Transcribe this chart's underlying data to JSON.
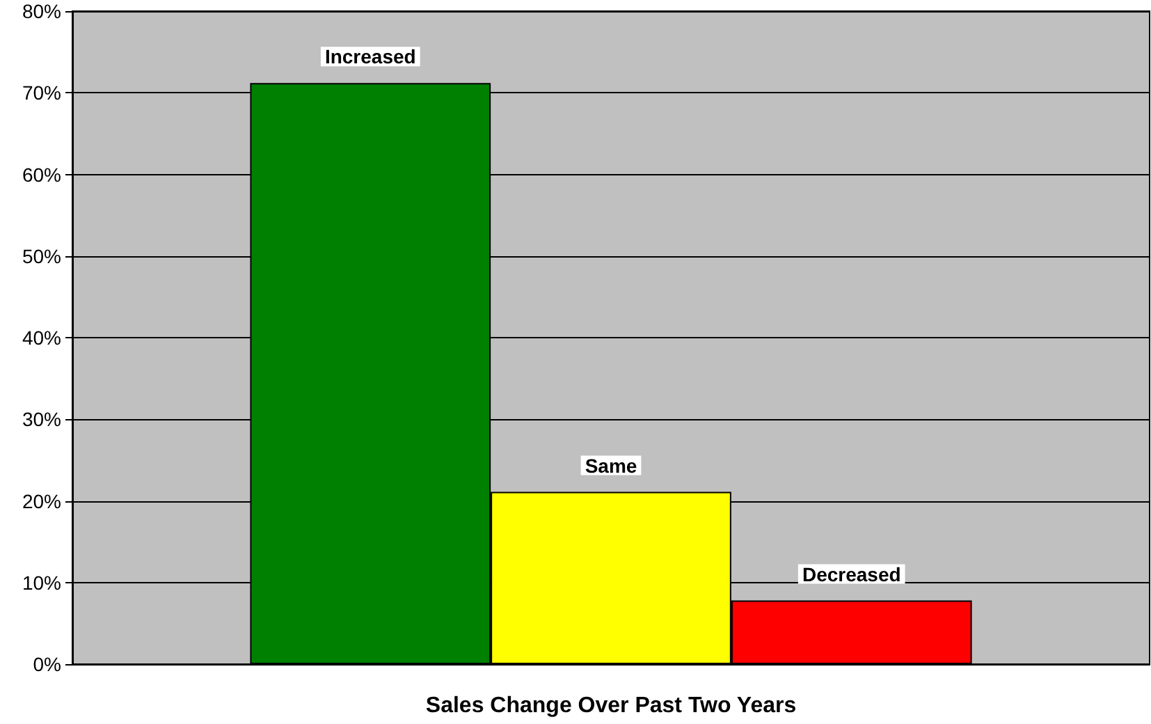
{
  "chart_data": {
    "type": "bar",
    "xlabel": "Sales Change Over Past Two Years",
    "categories": [
      null
    ],
    "series": [
      {
        "name": "Increased",
        "color": "#008000",
        "values": [
          71.2
        ]
      },
      {
        "name": "Same",
        "color": "#ffff00",
        "values": [
          21.1
        ]
      },
      {
        "name": "Decreased",
        "color": "#ff0000",
        "values": [
          7.8
        ]
      }
    ],
    "ylim": [
      0,
      80
    ],
    "yticks": [
      {
        "value": 0,
        "label": "0%"
      },
      {
        "value": 10,
        "label": "10%"
      },
      {
        "value": 20,
        "label": "20%"
      },
      {
        "value": 30,
        "label": "30%"
      },
      {
        "value": 40,
        "label": "40%"
      },
      {
        "value": 50,
        "label": "50%"
      },
      {
        "value": 60,
        "label": "60%"
      },
      {
        "value": 70,
        "label": "70%"
      },
      {
        "value": 80,
        "label": "80%"
      }
    ],
    "grid": "y",
    "legend": false
  }
}
